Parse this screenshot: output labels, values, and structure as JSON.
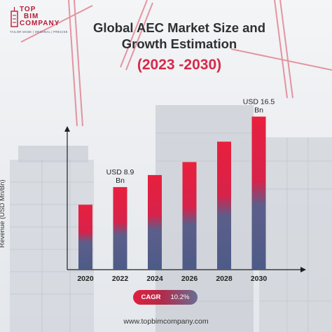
{
  "brand": {
    "logo_lines": [
      "TOP",
      "BIM",
      "COMPANY"
    ],
    "tagline": "TAILOR MADE | ORIGINAL | PRECISE",
    "website": "www.topbimcompany.com"
  },
  "colors": {
    "bar_top": "#e8203d",
    "bar_bottom": "#4d5b87",
    "title": "#2e3033",
    "accent": "#d52a4a"
  },
  "chart_data": {
    "type": "bar",
    "title": "Global AEC Market Size and Growth Estimation",
    "subtitle": "(2023 -2030)",
    "xlabel": "",
    "ylabel": "Revenue (USD Mn/Bn)",
    "categories": [
      "2020",
      "2022",
      "2024",
      "2026",
      "2028",
      "2030"
    ],
    "values": [
      7.0,
      8.9,
      10.2,
      11.6,
      13.8,
      16.5
    ],
    "data_labels": [
      "",
      "USD 8.9\nBn",
      "",
      "",
      "",
      "USD 16.5\nBn"
    ],
    "ylim": [
      0,
      18.5
    ],
    "grid": false,
    "legend": "none",
    "cagr": {
      "label": "CAGR",
      "value": "10.2%"
    }
  }
}
